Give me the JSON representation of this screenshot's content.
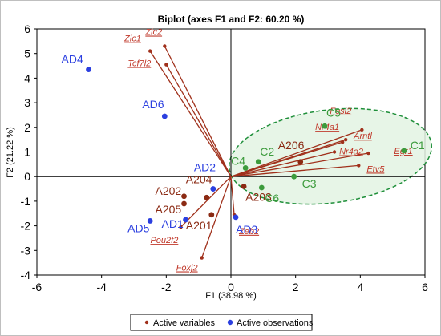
{
  "chart_data": {
    "type": "scatter",
    "title": "Biplot (axes F1 and F2: 60.20 %)",
    "xlabel": "F1 (38.98 %)",
    "ylabel": "F2 (21.22 %)",
    "xlim": [
      -6,
      6
    ],
    "ylim": [
      -4,
      6
    ],
    "x_ticks": [
      "-6",
      "-4",
      "-2",
      "0",
      "2",
      "4",
      "6"
    ],
    "y_ticks": [
      "-4",
      "-3",
      "-2",
      "-1",
      "0",
      "1",
      "2",
      "3",
      "4",
      "5",
      "6"
    ],
    "grid": false,
    "legend_position": "bottom",
    "legend": [
      {
        "label": "Active variables",
        "color": "#a0301b"
      },
      {
        "label": "Active observations",
        "color": "#2b3fe0"
      }
    ],
    "variables": [
      {
        "name": "Zic1",
        "x": -2.5,
        "y": 5.1,
        "color": "#a0301b"
      },
      {
        "name": "Zic2",
        "x": -2.05,
        "y": 5.3,
        "color": "#a0301b"
      },
      {
        "name": "Tcf7l2",
        "x": -2.0,
        "y": 4.55,
        "color": "#a0301b"
      },
      {
        "name": "Fosl2",
        "x": 4.05,
        "y": 1.9,
        "color": "#a0301b"
      },
      {
        "name": "Nr4a1",
        "x": 3.55,
        "y": 1.5,
        "color": "#a0301b"
      },
      {
        "name": "Arntl",
        "x": 3.45,
        "y": 1.4,
        "color": "#a0301b"
      },
      {
        "name": "Egr1",
        "x": 4.25,
        "y": 0.95,
        "color": "#a0301b"
      },
      {
        "name": "Nr4a2",
        "x": 3.2,
        "y": 1.0,
        "color": "#a0301b"
      },
      {
        "name": "Etv5",
        "x": 3.95,
        "y": 0.45,
        "color": "#a0301b"
      },
      {
        "name": "Pou2f2",
        "x": -1.55,
        "y": -2.05,
        "color": "#a0301b"
      },
      {
        "name": "Foxj2",
        "x": -0.9,
        "y": -3.3,
        "color": "#a0301b"
      },
      {
        "name": "Zeb2",
        "x": 0.1,
        "y": -1.55,
        "color": "#a0301b"
      }
    ],
    "observations": [
      {
        "name": "AD4",
        "x": -4.4,
        "y": 4.35,
        "color": "#2b3fe0"
      },
      {
        "name": "AD6",
        "x": -2.05,
        "y": 2.45,
        "color": "#2b3fe0"
      },
      {
        "name": "AD2",
        "x": -0.55,
        "y": -0.5,
        "color": "#2b3fe0"
      },
      {
        "name": "AD5",
        "x": -2.5,
        "y": -1.8,
        "color": "#2b3fe0"
      },
      {
        "name": "AD1",
        "x": -1.4,
        "y": -1.75,
        "color": "#2b3fe0"
      },
      {
        "name": "AD3",
        "x": 0.15,
        "y": -1.65,
        "color": "#2b3fe0"
      },
      {
        "name": "A202",
        "x": -1.45,
        "y": -0.8,
        "color": "#8b2a13"
      },
      {
        "name": "A204",
        "x": -0.75,
        "y": -0.85,
        "color": "#8b2a13"
      },
      {
        "name": "A205",
        "x": -1.45,
        "y": -1.1,
        "color": "#8b2a13"
      },
      {
        "name": "A201",
        "x": -0.6,
        "y": -1.55,
        "color": "#8b2a13"
      },
      {
        "name": "A203",
        "x": 0.4,
        "y": -0.4,
        "color": "#8b2a13"
      },
      {
        "name": "A206",
        "x": 2.15,
        "y": 0.6,
        "color": "#8b2a13"
      },
      {
        "name": "C1",
        "x": 5.35,
        "y": 1.05,
        "color": "#3c9b3c"
      },
      {
        "name": "C2",
        "x": 0.85,
        "y": 0.6,
        "color": "#3c9b3c"
      },
      {
        "name": "C3",
        "x": 1.95,
        "y": 0.0,
        "color": "#3c9b3c"
      },
      {
        "name": "C4",
        "x": 0.45,
        "y": 0.35,
        "color": "#3c9b3c"
      },
      {
        "name": "C5",
        "x": 2.9,
        "y": 2.05,
        "color": "#3c9b3c"
      },
      {
        "name": "C6",
        "x": 0.95,
        "y": -0.45,
        "color": "#3c9b3c"
      }
    ],
    "colors": {
      "variable_line": "#a0301b",
      "variable_label": "#c0392b",
      "ellipse_fill": "#e3f3e3",
      "ellipse_stroke": "#1f8f3a"
    }
  }
}
